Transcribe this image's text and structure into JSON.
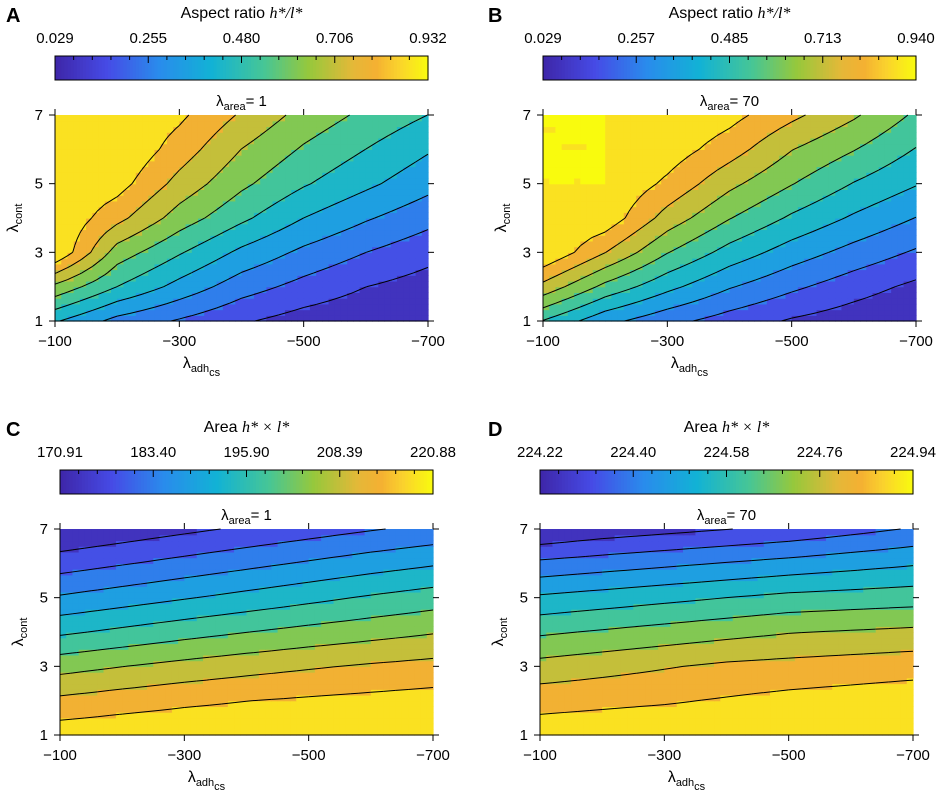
{
  "chart_data": [
    {
      "panel": "A",
      "type": "heatmap",
      "colorbar_title_prefix": "Aspect ratio ",
      "colorbar_title_math": "h*/l*",
      "colorbar_ticks": [
        "0.029",
        "0.255",
        "0.480",
        "0.706",
        "0.932"
      ],
      "colorbar_range": [
        0.029,
        0.932
      ],
      "title": {
        "symbol": "λ",
        "sub": "area",
        "value": "= 1"
      },
      "x": [
        -100,
        -200,
        -300,
        -400,
        -500,
        -600,
        -700
      ],
      "y": [
        1,
        2,
        3,
        4,
        5,
        6,
        7
      ],
      "xticks": [
        "−100",
        "−300",
        "−500",
        "−700"
      ],
      "yticks": [
        "1",
        "3",
        "5",
        "7"
      ],
      "xlabel": {
        "symbol": "λ",
        "sub": "adh",
        "subsub": "cs"
      },
      "ylabel": {
        "symbol": "λ",
        "sub": "cont"
      },
      "z": [
        [
          0.4,
          0.27,
          0.2,
          0.13,
          0.08,
          0.05,
          0.03
        ],
        [
          0.64,
          0.48,
          0.36,
          0.25,
          0.18,
          0.12,
          0.08
        ],
        [
          0.93,
          0.62,
          0.49,
          0.37,
          0.28,
          0.21,
          0.15
        ],
        [
          0.93,
          0.78,
          0.62,
          0.5,
          0.39,
          0.31,
          0.24
        ],
        [
          0.93,
          0.88,
          0.72,
          0.59,
          0.49,
          0.41,
          0.33
        ],
        [
          0.93,
          0.93,
          0.8,
          0.66,
          0.56,
          0.48,
          0.4
        ],
        [
          0.93,
          0.93,
          0.86,
          0.74,
          0.63,
          0.55,
          0.48
        ]
      ]
    },
    {
      "panel": "B",
      "type": "heatmap",
      "colorbar_title_prefix": "Aspect ratio ",
      "colorbar_title_math": "h*/l*",
      "colorbar_ticks": [
        "0.029",
        "0.257",
        "0.485",
        "0.713",
        "0.940"
      ],
      "colorbar_range": [
        0.029,
        0.94
      ],
      "title": {
        "symbol": "λ",
        "sub": "area",
        "value": "= 70"
      },
      "x": [
        -100,
        -200,
        -300,
        -400,
        -500,
        -600,
        -700
      ],
      "y": [
        1,
        2,
        3,
        4,
        5,
        6,
        7
      ],
      "xticks": [
        "−100",
        "−300",
        "−500",
        "−700"
      ],
      "yticks": [
        "1",
        "3",
        "5",
        "7"
      ],
      "xlabel": {
        "symbol": "λ",
        "sub": "adh",
        "subsub": "cs"
      },
      "ylabel": {
        "symbol": "λ",
        "sub": "cont"
      },
      "z": [
        [
          0.48,
          0.33,
          0.24,
          0.17,
          0.11,
          0.07,
          0.03
        ],
        [
          0.73,
          0.55,
          0.42,
          0.31,
          0.23,
          0.16,
          0.1
        ],
        [
          0.94,
          0.76,
          0.58,
          0.45,
          0.35,
          0.27,
          0.2
        ],
        [
          0.94,
          0.91,
          0.72,
          0.58,
          0.47,
          0.38,
          0.3
        ],
        [
          0.94,
          0.94,
          0.83,
          0.69,
          0.58,
          0.48,
          0.4
        ],
        [
          0.94,
          0.94,
          0.9,
          0.8,
          0.67,
          0.58,
          0.48
        ],
        [
          0.94,
          0.94,
          0.94,
          0.88,
          0.78,
          0.68,
          0.56
        ]
      ]
    },
    {
      "panel": "C",
      "type": "heatmap",
      "colorbar_title_prefix": "Area ",
      "colorbar_title_math": "h* × l*",
      "colorbar_ticks": [
        "170.91",
        "183.40",
        "195.90",
        "208.39",
        "220.88"
      ],
      "colorbar_range": [
        170.91,
        220.88
      ],
      "title": {
        "symbol": "λ",
        "sub": "area",
        "value": "= 1"
      },
      "x": [
        -100,
        -200,
        -300,
        -400,
        -500,
        -600,
        -700
      ],
      "y": [
        1,
        2,
        3,
        4,
        5,
        6,
        7
      ],
      "xticks": [
        "−100",
        "−300",
        "−500",
        "−700"
      ],
      "yticks": [
        "1",
        "3",
        "5",
        "7"
      ],
      "xlabel": {
        "symbol": "λ",
        "sub": "adh",
        "subsub": "cs"
      },
      "ylabel": {
        "symbol": "λ",
        "sub": "cont"
      },
      "z": [
        [
          218.8,
          219.6,
          220.2,
          220.5,
          220.7,
          220.8,
          220.88
        ],
        [
          212.0,
          213.5,
          214.8,
          215.8,
          216.6,
          217.3,
          218.0
        ],
        [
          204.0,
          205.8,
          207.5,
          209.0,
          210.3,
          211.5,
          212.5
        ],
        [
          195.0,
          197.0,
          199.0,
          200.8,
          202.5,
          204.0,
          205.5
        ],
        [
          186.5,
          188.5,
          190.5,
          192.5,
          194.5,
          196.5,
          198.3
        ],
        [
          178.5,
          180.5,
          182.5,
          184.5,
          186.5,
          188.5,
          190.3
        ],
        [
          170.91,
          172.8,
          174.8,
          176.7,
          178.6,
          180.5,
          182.2
        ]
      ]
    },
    {
      "panel": "D",
      "type": "heatmap",
      "colorbar_title_prefix": "Area ",
      "colorbar_title_math": "h* × l*",
      "colorbar_ticks": [
        "224.22",
        "224.40",
        "224.58",
        "224.76",
        "224.94"
      ],
      "colorbar_range": [
        224.22,
        224.94
      ],
      "title": {
        "symbol": "λ",
        "sub": "area",
        "value": "= 70"
      },
      "x": [
        -100,
        -200,
        -300,
        -400,
        -500,
        -600,
        -700
      ],
      "y": [
        1,
        2,
        3,
        4,
        5,
        6,
        7
      ],
      "xticks": [
        "−100",
        "−300",
        "−500",
        "−700"
      ],
      "yticks": [
        "1",
        "3",
        "5",
        "7"
      ],
      "xlabel": {
        "symbol": "λ",
        "sub": "adh",
        "subsub": "cs"
      },
      "ylabel": {
        "symbol": "λ",
        "sub": "cont"
      },
      "z": [
        [
          224.91,
          224.92,
          224.93,
          224.935,
          224.94,
          224.94,
          224.94
        ],
        [
          224.84,
          224.85,
          224.86,
          224.875,
          224.89,
          224.9,
          224.91
        ],
        [
          224.75,
          224.77,
          224.79,
          224.81,
          224.82,
          224.83,
          224.84
        ],
        [
          224.64,
          224.66,
          224.68,
          224.7,
          224.72,
          224.73,
          224.74
        ],
        [
          224.52,
          224.54,
          224.56,
          224.58,
          224.6,
          224.61,
          224.62
        ],
        [
          224.38,
          224.4,
          224.42,
          224.44,
          224.46,
          224.48,
          224.5
        ],
        [
          224.22,
          224.25,
          224.27,
          224.29,
          224.31,
          224.34,
          224.37
        ]
      ]
    }
  ]
}
